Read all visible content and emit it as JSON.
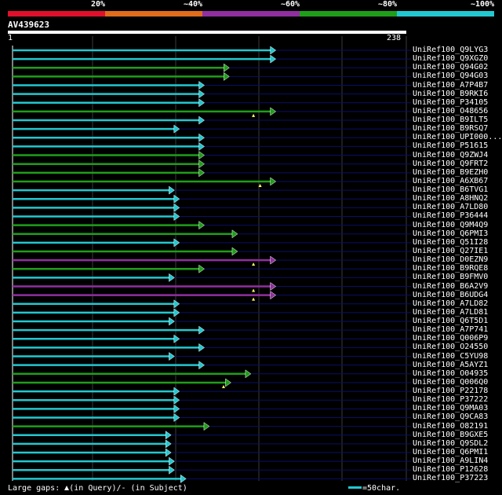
{
  "legend": {
    "segments": [
      {
        "color": "#e0102c",
        "label": ""
      },
      {
        "color": "#e06c1c",
        "label": "20%"
      },
      {
        "color": "#902fa0",
        "label": "~40%"
      },
      {
        "color": "#1f9e1a",
        "label": "~60%"
      },
      {
        "color": "#22c8d0",
        "label": "~80%"
      },
      {
        "color": "#22c8d0",
        "label": "~100%"
      }
    ]
  },
  "query": {
    "name": "AV439623",
    "start": "1",
    "end": "238",
    "length": 238
  },
  "colors": {
    "cyan": "#22c8d0",
    "green": "#1f9e1a",
    "purple": "#902fa0",
    "grid": "#3a3a3a",
    "row_line": "#0a0f66"
  },
  "hits": [
    {
      "name": "UniRef100_Q9LYG3",
      "end": 159,
      "color": "cyan",
      "gap": null
    },
    {
      "name": "UniRef100_Q9XGZ0",
      "end": 159,
      "color": "cyan",
      "gap": null
    },
    {
      "name": "UniRef100_Q94G02",
      "end": 131,
      "color": "green",
      "gap": null
    },
    {
      "name": "UniRef100_Q94G03",
      "end": 131,
      "color": "green",
      "gap": null
    },
    {
      "name": "UniRef100_A7P4B7",
      "end": 116,
      "color": "cyan",
      "gap": null
    },
    {
      "name": "UniRef100_B9RKI6",
      "end": 116,
      "color": "cyan",
      "gap": null
    },
    {
      "name": "UniRef100_P34105",
      "end": 116,
      "color": "cyan",
      "gap": null
    },
    {
      "name": "UniRef100_O48656",
      "end": 159,
      "color": "green",
      "gap": 146
    },
    {
      "name": "UniRef100_B9ILT5",
      "end": 116,
      "color": "cyan",
      "gap": null
    },
    {
      "name": "UniRef100_B9RSQ7",
      "end": 101,
      "color": "cyan",
      "gap": null
    },
    {
      "name": "UniRef100_UPI000...",
      "end": 116,
      "color": "cyan",
      "gap": null
    },
    {
      "name": "UniRef100_P51615",
      "end": 116,
      "color": "cyan",
      "gap": null
    },
    {
      "name": "UniRef100_Q9ZWJ4",
      "end": 116,
      "color": "green",
      "gap": null
    },
    {
      "name": "UniRef100_Q9FRT2",
      "end": 116,
      "color": "green",
      "gap": null
    },
    {
      "name": "UniRef100_B9EZH0",
      "end": 116,
      "color": "green",
      "gap": null
    },
    {
      "name": "UniRef100_A6XB67",
      "end": 159,
      "color": "green",
      "gap": 150
    },
    {
      "name": "UniRef100_B6TVG1",
      "end": 98,
      "color": "cyan",
      "gap": null
    },
    {
      "name": "UniRef100_A8HNQ2",
      "end": 101,
      "color": "cyan",
      "gap": null
    },
    {
      "name": "UniRef100_A7LD80",
      "end": 101,
      "color": "cyan",
      "gap": null
    },
    {
      "name": "UniRef100_P36444",
      "end": 101,
      "color": "cyan",
      "gap": null
    },
    {
      "name": "UniRef100_Q9M4Q9",
      "end": 116,
      "color": "green",
      "gap": null
    },
    {
      "name": "UniRef100_Q6PMI3",
      "end": 136,
      "color": "green",
      "gap": null
    },
    {
      "name": "UniRef100_Q51I28",
      "end": 101,
      "color": "cyan",
      "gap": null
    },
    {
      "name": "UniRef100_Q27IE1",
      "end": 136,
      "color": "green",
      "gap": null
    },
    {
      "name": "UniRef100_D0EZN9",
      "end": 159,
      "color": "purple",
      "gap": 146
    },
    {
      "name": "UniRef100_B9RQE8",
      "end": 116,
      "color": "green",
      "gap": null
    },
    {
      "name": "UniRef100_B9FMV0",
      "end": 98,
      "color": "cyan",
      "gap": null
    },
    {
      "name": "UniRef100_B6A2V9",
      "end": 159,
      "color": "purple",
      "gap": 146
    },
    {
      "name": "UniRef100_B6UDG4",
      "end": 159,
      "color": "purple",
      "gap": 146
    },
    {
      "name": "UniRef100_A7LD82",
      "end": 101,
      "color": "cyan",
      "gap": null
    },
    {
      "name": "UniRef100_A7LD81",
      "end": 101,
      "color": "cyan",
      "gap": null
    },
    {
      "name": "UniRef100_Q6T5D1",
      "end": 98,
      "color": "cyan",
      "gap": null
    },
    {
      "name": "UniRef100_A7P741",
      "end": 116,
      "color": "cyan",
      "gap": null
    },
    {
      "name": "UniRef100_Q006P9",
      "end": 101,
      "color": "cyan",
      "gap": null
    },
    {
      "name": "UniRef100_O24550",
      "end": 116,
      "color": "cyan",
      "gap": null
    },
    {
      "name": "UniRef100_C5YU98",
      "end": 98,
      "color": "cyan",
      "gap": null
    },
    {
      "name": "UniRef100_A5AYZ1",
      "end": 116,
      "color": "cyan",
      "gap": null
    },
    {
      "name": "UniRef100_O04935",
      "end": 144,
      "color": "green",
      "gap": null
    },
    {
      "name": "UniRef100_Q006Q0",
      "end": 132,
      "color": "green",
      "gap": 128
    },
    {
      "name": "UniRef100_P22178",
      "end": 101,
      "color": "cyan",
      "gap": null
    },
    {
      "name": "UniRef100_P37222",
      "end": 101,
      "color": "cyan",
      "gap": null
    },
    {
      "name": "UniRef100_Q9MA03",
      "end": 101,
      "color": "cyan",
      "gap": null
    },
    {
      "name": "UniRef100_Q9CA83",
      "end": 101,
      "color": "cyan",
      "gap": null
    },
    {
      "name": "UniRef100_O82191",
      "end": 119,
      "color": "green",
      "gap": null
    },
    {
      "name": "UniRef100_B9GXE5",
      "end": 96,
      "color": "cyan",
      "gap": null
    },
    {
      "name": "UniRef100_Q9SDL2",
      "end": 96,
      "color": "cyan",
      "gap": null
    },
    {
      "name": "UniRef100_Q6PMI1",
      "end": 96,
      "color": "cyan",
      "gap": null
    },
    {
      "name": "UniRef100_A9LIN4",
      "end": 98,
      "color": "cyan",
      "gap": null
    },
    {
      "name": "UniRef100_P12628",
      "end": 98,
      "color": "cyan",
      "gap": null
    },
    {
      "name": "UniRef100_P37223",
      "end": 105,
      "color": "cyan",
      "gap": null
    }
  ],
  "footer": {
    "prefix": "Large gaps:",
    "query_gap": "(in Query)/",
    "subject_gap": "- (in Subject)"
  },
  "scale_legend": {
    "text": "=50char."
  }
}
